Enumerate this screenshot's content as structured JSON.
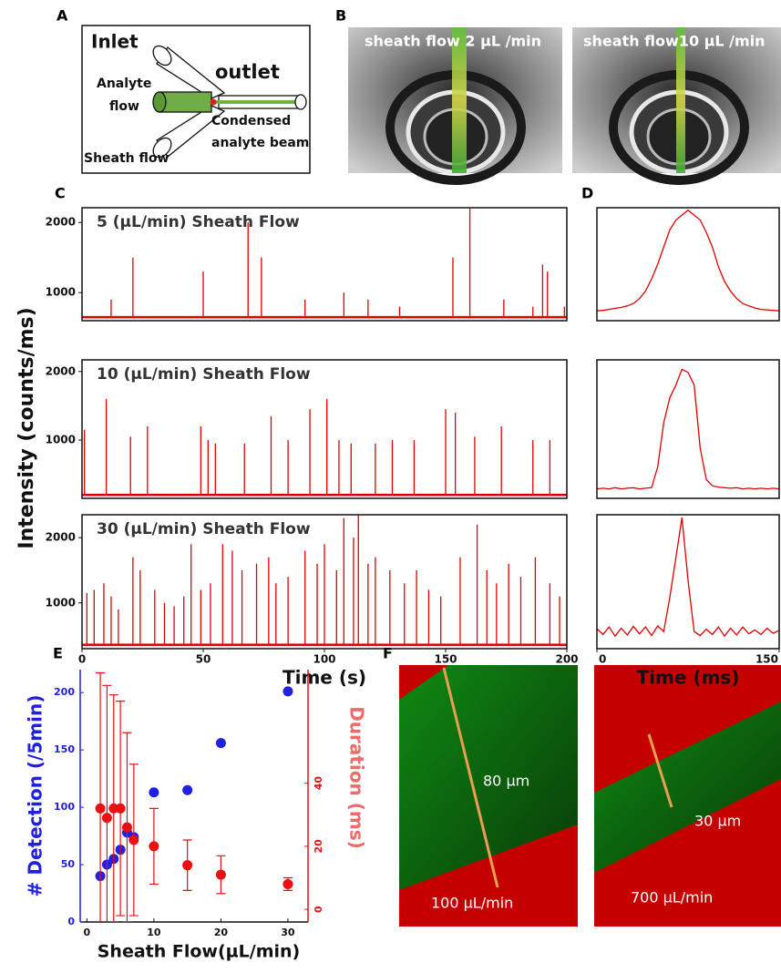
{
  "panel_labels": [
    "A",
    "B",
    "C",
    "D",
    "E",
    "F"
  ],
  "schematic": {
    "inlet": "Inlet",
    "outlet": "outlet",
    "analyte_flow": [
      "Analyte",
      "flow"
    ],
    "beam": [
      "Condensed",
      "analyte beam"
    ],
    "sheath": "Sheath flow"
  },
  "photos": [
    {
      "label": "sheath flow 2 µL /min"
    },
    {
      "label": "sheath flow10 µL /min"
    }
  ],
  "intensity_axis_label": "Intensity (counts/ms)",
  "micrographs": [
    {
      "width_label": "80 µm",
      "flow_label": "100 µL/min"
    },
    {
      "width_label": "30 µm",
      "flow_label": "700 µL/min"
    }
  ],
  "chart_data": [
    {
      "type": "spikes",
      "title": "5 (µL/min) Sheath Flow",
      "color": "#e00000",
      "baseline": 650,
      "x": [
        12,
        21,
        50,
        68.5,
        74,
        92,
        108,
        118,
        131,
        153,
        160,
        174,
        186,
        190,
        192,
        199
      ],
      "values": [
        900,
        1500,
        1300,
        2000,
        1500,
        900,
        1000,
        900,
        800,
        1500,
        2200,
        900,
        800,
        1400,
        1300,
        800
      ],
      "xlim": [
        0,
        200
      ],
      "ylim": [
        600,
        2210
      ],
      "yticks": [
        1000,
        2000
      ]
    },
    {
      "type": "spikes",
      "title": "10 (µL/min) Sheath Flow",
      "color": "#e00000",
      "baseline": 200,
      "x": [
        1,
        10,
        20,
        27,
        49,
        52,
        55,
        67,
        78,
        85,
        94,
        101,
        106,
        111,
        121,
        128,
        137,
        150,
        154,
        162,
        173,
        186,
        193
      ],
      "values": [
        1150,
        1600,
        1050,
        1200,
        1200,
        1000,
        950,
        950,
        1350,
        1000,
        1450,
        1600,
        1000,
        950,
        950,
        1000,
        1000,
        1450,
        1400,
        1050,
        1200,
        1000,
        1000
      ],
      "xlim": [
        0,
        200
      ],
      "ylim": [
        150,
        2170
      ],
      "yticks": [
        1000,
        2000
      ]
    },
    {
      "type": "spikes",
      "title": "30 (µL/min) Sheath Flow",
      "color": "#e00000",
      "baseline": 360,
      "x": [
        2,
        5,
        9,
        12,
        15,
        21,
        24,
        30,
        34,
        38,
        42,
        45,
        49,
        53,
        58,
        62,
        66,
        72,
        77,
        80,
        85,
        92,
        97,
        100,
        105,
        108,
        112,
        114,
        118,
        121,
        127,
        133,
        138,
        143,
        148,
        156,
        163,
        167,
        171,
        176,
        181,
        187,
        193,
        197
      ],
      "values": [
        1150,
        1200,
        1300,
        1100,
        900,
        1700,
        1500,
        1200,
        1000,
        950,
        1100,
        1900,
        1200,
        1300,
        1900,
        1800,
        1500,
        1600,
        1700,
        1300,
        1400,
        1800,
        1600,
        1900,
        1500,
        2300,
        2000,
        2350,
        1600,
        1700,
        1500,
        1300,
        1500,
        1200,
        1100,
        1700,
        2200,
        1500,
        1300,
        1600,
        1400,
        1700,
        1300,
        1100
      ],
      "xlim": [
        0,
        200
      ],
      "ylim": [
        300,
        2350
      ],
      "yticks": [
        1000,
        2000
      ],
      "xticks": [
        0,
        50,
        100,
        150,
        200
      ],
      "xlabel": "Time (s)"
    },
    {
      "type": "line",
      "color": "#e00000",
      "x": [
        0,
        5,
        10,
        15,
        20,
        25,
        30,
        35,
        40,
        45,
        50,
        55,
        60,
        65,
        70,
        75,
        80,
        85,
        90,
        95,
        100,
        105,
        110,
        115,
        120,
        125,
        130,
        135,
        140,
        145,
        150
      ],
      "values": [
        200,
        210,
        230,
        250,
        270,
        300,
        350,
        450,
        600,
        850,
        1150,
        1500,
        1850,
        2050,
        2150,
        2250,
        2150,
        2050,
        1800,
        1500,
        1100,
        800,
        600,
        450,
        350,
        300,
        260,
        230,
        220,
        210,
        200
      ],
      "xlim": [
        0,
        150
      ],
      "ylim": [
        0,
        2300
      ]
    },
    {
      "type": "line",
      "color": "#e00000",
      "x": [
        0,
        5,
        10,
        15,
        20,
        25,
        30,
        35,
        40,
        45,
        50,
        55,
        60,
        65,
        70,
        75,
        80,
        85,
        90,
        95,
        100,
        105,
        110,
        115,
        120,
        125,
        130,
        135,
        140,
        145,
        150
      ],
      "values": [
        150,
        160,
        150,
        170,
        150,
        160,
        170,
        150,
        160,
        170,
        500,
        1200,
        1600,
        1800,
        2050,
        2000,
        1800,
        800,
        300,
        200,
        180,
        170,
        160,
        170,
        150,
        160,
        150,
        160,
        150,
        160,
        150
      ],
      "xlim": [
        0,
        150
      ],
      "ylim": [
        0,
        2200
      ]
    },
    {
      "type": "line",
      "color": "#e00000",
      "x": [
        0,
        5,
        10,
        15,
        20,
        25,
        30,
        35,
        40,
        45,
        50,
        55,
        60,
        65,
        70,
        75,
        80,
        85,
        90,
        95,
        100,
        105,
        110,
        115,
        120,
        125,
        130,
        135,
        140,
        145,
        150
      ],
      "values": [
        350,
        250,
        380,
        220,
        360,
        240,
        390,
        260,
        380,
        230,
        400,
        300,
        900,
        1600,
        2300,
        1200,
        300,
        230,
        340,
        250,
        380,
        220,
        360,
        240,
        380,
        260,
        330,
        250,
        360,
        270,
        320
      ],
      "xlim": [
        0,
        150
      ],
      "ylim": [
        0,
        2350
      ],
      "xticks": [
        0,
        150
      ],
      "xlabel": "Time (ms)"
    },
    {
      "type": "scatter",
      "xlabel": "Sheath Flow(µL/min)",
      "ylabel": "# Detection (/5min)",
      "y2label": "Duration (ms)",
      "x": [
        2,
        3,
        4,
        5,
        6,
        7,
        10,
        15,
        20,
        30
      ],
      "series": [
        {
          "color": "#2020e0",
          "values": [
            40,
            50,
            55,
            63,
            78,
            74,
            113,
            115,
            156,
            201
          ]
        },
        {
          "color": "#e81010",
          "axis": "y2",
          "values": [
            32,
            29,
            32,
            32,
            26,
            22,
            20,
            14,
            11,
            8
          ],
          "errors": [
            43,
            42,
            36,
            34,
            30,
            24,
            12,
            8,
            6,
            2
          ]
        }
      ],
      "xlim": [
        -1,
        33
      ],
      "xticks": [
        0,
        10,
        20,
        30
      ],
      "ylim": [
        0,
        220
      ],
      "yticks": [
        0,
        50,
        100,
        150,
        200
      ],
      "y2lim": [
        -4,
        76
      ],
      "y2ticks": [
        0,
        20,
        40
      ]
    }
  ]
}
